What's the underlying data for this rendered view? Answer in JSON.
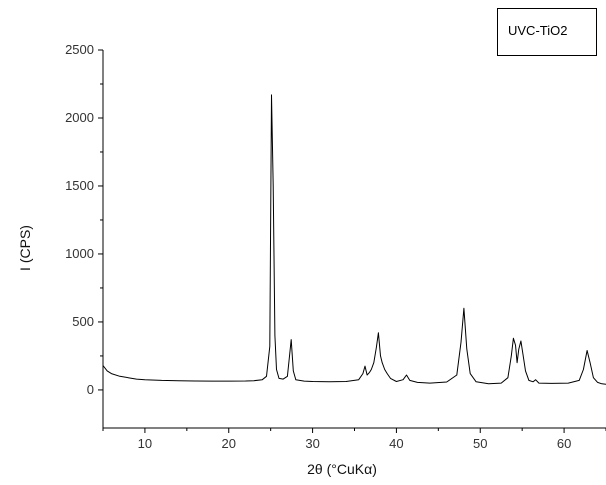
{
  "chart_data": {
    "type": "line",
    "title": "",
    "xlabel": "2θ (°CuKα)",
    "ylabel": "I (CPS)",
    "xlim": [
      5,
      65
    ],
    "ylim": [
      -280,
      2500
    ],
    "xticks": [
      10,
      20,
      30,
      40,
      50,
      60
    ],
    "yticks": [
      0,
      500,
      1000,
      1500,
      2000,
      2500
    ],
    "xtick_labels": [
      "10",
      "20",
      "30",
      "40",
      "50",
      "60"
    ],
    "ytick_labels": [
      "0",
      "500",
      "1000",
      "1500",
      "2000",
      "2500"
    ],
    "grid": false,
    "legend": "top-right",
    "line_color": "#000000",
    "series": [
      {
        "name": "UVC-TiO2",
        "x": [
          5.0,
          5.5,
          6.0,
          7.0,
          8.0,
          9.0,
          10.0,
          12.0,
          14.0,
          16.0,
          18.0,
          20.0,
          22.0,
          23.0,
          24.0,
          24.5,
          24.9,
          25.1,
          25.3,
          25.5,
          25.7,
          26.0,
          26.5,
          27.0,
          27.2,
          27.45,
          27.7,
          28.0,
          29.0,
          30.0,
          32.0,
          34.0,
          35.5,
          36.0,
          36.25,
          36.5,
          36.8,
          37.0,
          37.3,
          37.6,
          37.85,
          38.1,
          38.3,
          38.6,
          38.9,
          39.3,
          40.0,
          40.8,
          41.2,
          41.6,
          42.5,
          44.0,
          46.0,
          47.2,
          47.7,
          48.05,
          48.4,
          48.8,
          49.5,
          51.0,
          52.5,
          53.3,
          53.7,
          53.95,
          54.2,
          54.4,
          54.6,
          54.85,
          55.1,
          55.4,
          55.8,
          56.3,
          56.6,
          57.0,
          58.5,
          60.5,
          61.8,
          62.3,
          62.75,
          63.1,
          63.5,
          64.0,
          64.5,
          65.0
        ],
        "y": [
          180,
          140,
          120,
          100,
          90,
          80,
          75,
          70,
          68,
          66,
          65,
          65,
          66,
          68,
          75,
          100,
          320,
          2170,
          1500,
          400,
          150,
          85,
          80,
          100,
          220,
          370,
          140,
          75,
          65,
          62,
          60,
          62,
          75,
          120,
          175,
          110,
          130,
          150,
          200,
          310,
          420,
          250,
          200,
          150,
          120,
          85,
          62,
          75,
          110,
          70,
          55,
          50,
          58,
          110,
          350,
          600,
          300,
          120,
          60,
          45,
          50,
          90,
          250,
          380,
          330,
          200,
          300,
          360,
          260,
          140,
          70,
          60,
          75,
          50,
          48,
          50,
          70,
          150,
          290,
          200,
          90,
          55,
          45,
          42
        ]
      }
    ]
  }
}
